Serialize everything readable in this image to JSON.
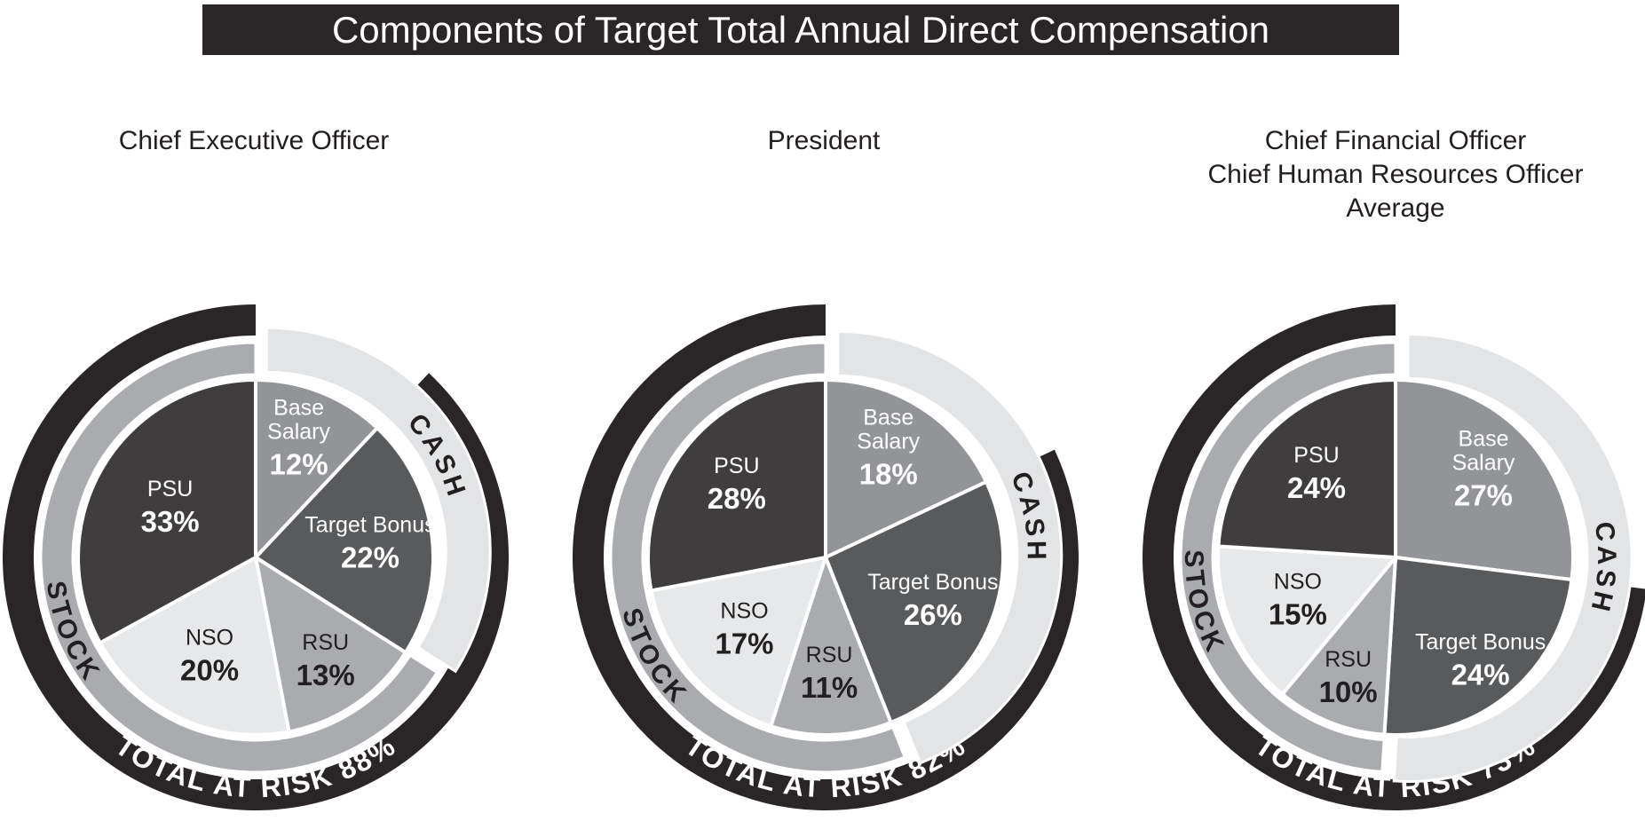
{
  "title_bar": {
    "text": "Components of Target Total Annual Direct Compensation",
    "bg_color": "#2A2627",
    "text_color": "#FFFFFF"
  },
  "colors": {
    "at_risk_arc": "#2A2627",
    "cash_ring": "#E3E4E6",
    "stock_ring": "#A9ABAE",
    "slice_border": "#FFFFFF",
    "title_text": "#231F20"
  },
  "chart_data": [
    {
      "type": "pie",
      "title": "Chief Executive Officer",
      "categories": [
        "Base Salary",
        "Target Bonus",
        "RSU",
        "NSO",
        "PSU"
      ],
      "values": [
        12,
        22,
        13,
        20,
        33
      ],
      "cash_pct": 34,
      "stock_pct": 66,
      "total_at_risk_pct": 88
    },
    {
      "type": "pie",
      "title": "President",
      "categories": [
        "Base Salary",
        "Target Bonus",
        "RSU",
        "NSO",
        "PSU"
      ],
      "values": [
        18,
        26,
        11,
        17,
        28
      ],
      "cash_pct": 44,
      "stock_pct": 56,
      "total_at_risk_pct": 82
    },
    {
      "type": "pie",
      "title": "Chief Financial Officer / Chief Human Resources Officer / Average",
      "categories": [
        "Base Salary",
        "Target Bonus",
        "RSU",
        "NSO",
        "PSU"
      ],
      "values": [
        27,
        24,
        10,
        15,
        24
      ],
      "cash_pct": 51,
      "stock_pct": 49,
      "total_at_risk_pct": 73
    }
  ],
  "charts": [
    {
      "id": "ceo",
      "title_lines": [
        "Chief Executive Officer"
      ],
      "cash_label": "CASH",
      "stock_label": "STOCK",
      "total_at_risk_label": "TOTAL AT RISK 88%",
      "cash_label_angle": 61,
      "stock_label_angle": 248,
      "slices": [
        {
          "key": "base-salary",
          "label_lines": [
            "Base",
            "Salary"
          ],
          "value": 12,
          "pct_label": "12%",
          "color": "#929497",
          "text_color": "#FFFFFF",
          "label_r": 132
        },
        {
          "key": "target-bonus",
          "label_lines": [
            "Target Bonus"
          ],
          "value": 22,
          "pct_label": "22%",
          "color": "#595A5C",
          "text_color": "#FFFFFF",
          "label_r": 130
        },
        {
          "key": "rsu",
          "label_lines": [
            "RSU"
          ],
          "value": 13,
          "pct_label": "13%",
          "color": "#A9ABAE",
          "text_color": "#231F20",
          "label_r": 140
        },
        {
          "key": "nso",
          "label_lines": [
            "NSO"
          ],
          "value": 20,
          "pct_label": "20%",
          "color": "#E7E8E9",
          "text_color": "#231F20",
          "label_r": 122
        },
        {
          "key": "psu",
          "label_lines": [
            "PSU"
          ],
          "value": 33,
          "pct_label": "33%",
          "color": "#403D3F",
          "text_color": "#FFFFFF",
          "label_r": 112
        }
      ]
    },
    {
      "id": "president",
      "title_lines": [
        "President"
      ],
      "cash_label": "CASH",
      "stock_label": "STOCK",
      "total_at_risk_label": "TOTAL AT RISK 82%",
      "cash_label_angle": 79,
      "stock_label_angle": 240,
      "slices": [
        {
          "key": "base-salary",
          "label_lines": [
            "Base",
            "Salary"
          ],
          "value": 18,
          "pct_label": "18%",
          "color": "#929497",
          "text_color": "#FFFFFF",
          "label_r": 132
        },
        {
          "key": "target-bonus",
          "label_lines": [
            "Target Bonus"
          ],
          "value": 26,
          "pct_label": "26%",
          "color": "#595A5C",
          "text_color": "#FFFFFF",
          "label_r": 130
        },
        {
          "key": "rsu",
          "label_lines": [
            "RSU"
          ],
          "value": 11,
          "pct_label": "11%",
          "color": "#A9ABAE",
          "text_color": "#231F20",
          "label_r": 130
        },
        {
          "key": "nso",
          "label_lines": [
            "NSO"
          ],
          "value": 17,
          "pct_label": "17%",
          "color": "#E7E8E9",
          "text_color": "#231F20",
          "label_r": 122
        },
        {
          "key": "psu",
          "label_lines": [
            "PSU"
          ],
          "value": 28,
          "pct_label": "28%",
          "color": "#403D3F",
          "text_color": "#FFFFFF",
          "label_r": 130
        }
      ]
    },
    {
      "id": "cfo-chro-average",
      "title_lines": [
        "Chief Financial Officer",
        "Chief Human Resources Officer",
        "Average"
      ],
      "cash_label": "CASH",
      "stock_label": "STOCK",
      "total_at_risk_label": "TOTAL AT RISK 73%",
      "cash_label_angle": 93,
      "stock_label_angle": 257,
      "slices": [
        {
          "key": "base-salary",
          "label_lines": [
            "Base",
            "Salary"
          ],
          "value": 27,
          "pct_label": "27%",
          "color": "#929497",
          "text_color": "#FFFFFF",
          "label_r": 132
        },
        {
          "key": "target-bonus",
          "label_lines": [
            "Target Bonus"
          ],
          "value": 24,
          "pct_label": "24%",
          "color": "#595A5C",
          "text_color": "#FFFFFF",
          "label_r": 150
        },
        {
          "key": "rsu",
          "label_lines": [
            "RSU"
          ],
          "value": 10,
          "pct_label": "10%",
          "color": "#A9ABAE",
          "text_color": "#231F20",
          "label_r": 145
        },
        {
          "key": "nso",
          "label_lines": [
            "NSO"
          ],
          "value": 15,
          "pct_label": "15%",
          "color": "#E7E8E9",
          "text_color": "#231F20",
          "label_r": 120
        },
        {
          "key": "psu",
          "label_lines": [
            "PSU"
          ],
          "value": 24,
          "pct_label": "24%",
          "color": "#403D3F",
          "text_color": "#FFFFFF",
          "label_r": 130
        }
      ]
    }
  ]
}
